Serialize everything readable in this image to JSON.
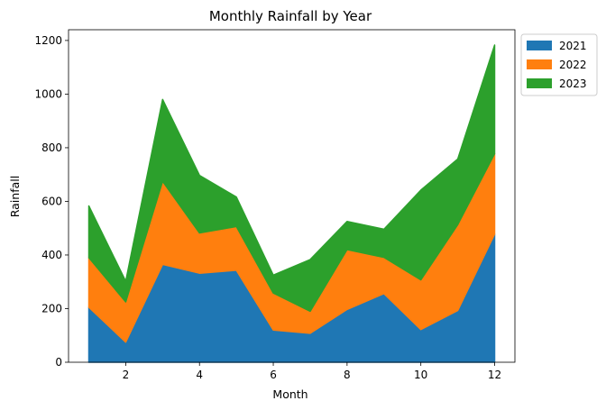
{
  "chart_data": {
    "type": "area",
    "stacked": true,
    "title": "Monthly Rainfall by Year",
    "xlabel": "Month",
    "ylabel": "Rainfall",
    "x": [
      1,
      2,
      3,
      4,
      5,
      6,
      7,
      8,
      9,
      10,
      11,
      12
    ],
    "xticks": [
      2,
      4,
      6,
      8,
      10,
      12
    ],
    "xlim": [
      0.45,
      12.55
    ],
    "yticks": [
      0,
      200,
      400,
      600,
      800,
      1000,
      1200
    ],
    "ylim": [
      0,
      1240
    ],
    "grid": false,
    "legend_position": "outside-top-right",
    "series": [
      {
        "name": "2021",
        "color": "#1f77b4",
        "values": [
          205,
          75,
          365,
          332,
          343,
          120,
          108,
          197,
          256,
          122,
          193,
          478
        ]
      },
      {
        "name": "2022",
        "color": "#ff7f0e",
        "values": [
          185,
          150,
          310,
          150,
          163,
          138,
          82,
          223,
          135,
          185,
          320,
          300
        ]
      },
      {
        "name": "2023",
        "color": "#2ca02c",
        "values": [
          193,
          77,
          305,
          215,
          110,
          67,
          193,
          105,
          105,
          335,
          245,
          405
        ]
      }
    ]
  }
}
